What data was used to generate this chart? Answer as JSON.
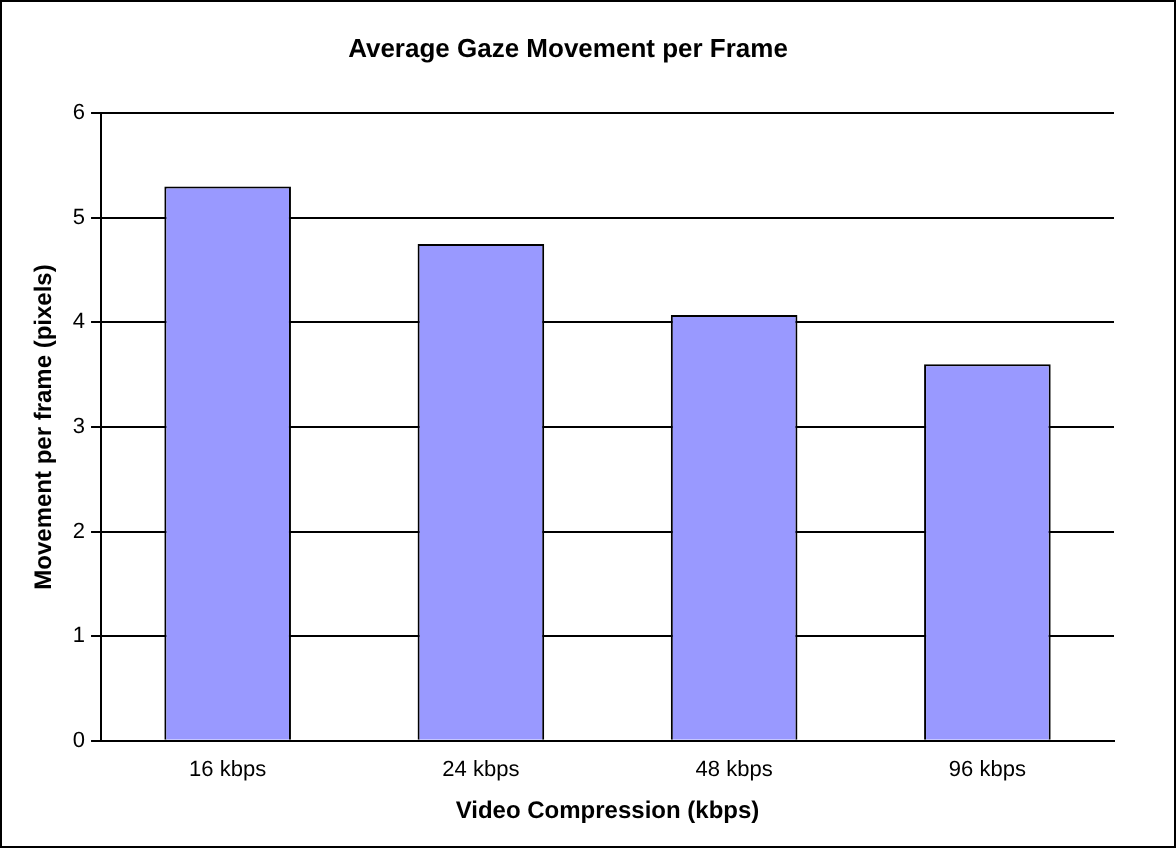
{
  "chart_data": {
    "type": "bar",
    "title": "Average Gaze Movement per Frame",
    "xlabel": "Video Compression (kbps)",
    "ylabel": "Movement per frame (pixels)",
    "categories": [
      "16 kbps",
      "24 kbps",
      "48 kbps",
      "96 kbps"
    ],
    "values": [
      5.3,
      4.75,
      4.07,
      3.6
    ],
    "color": "#9999ff",
    "ylim": [
      0,
      6
    ],
    "yticks": [
      0,
      1,
      2,
      3,
      4,
      5,
      6
    ],
    "grid": "y",
    "legend": false
  }
}
